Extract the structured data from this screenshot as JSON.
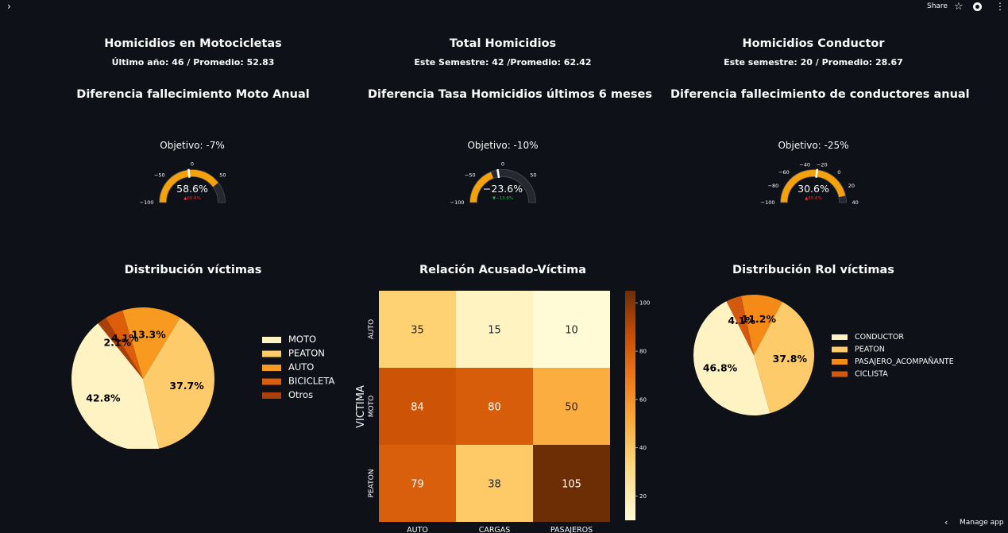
{
  "topbar": {
    "share_label": "Share"
  },
  "icons": {
    "menu": "chevron-right-icon",
    "star": "star-icon",
    "github": "github-icon",
    "more": "kebab-icon",
    "manage": "chevron-left-icon"
  },
  "metrics": [
    {
      "title": "Homicidios en Motocicletas",
      "subtitle": "Último año: 46 / Promedio: 52.83"
    },
    {
      "title": "Total Homicidios",
      "subtitle": "Este Semestre: 42 /Promedio: 62.42"
    },
    {
      "title": "Homicidios Conductor",
      "subtitle": "Este semestre: 20 / Promedio: 28.67"
    }
  ],
  "gauge_titles": [
    "Diferencia fallecimiento Moto Anual",
    "Diferencia Tasa Homicidios últimos 6 meses",
    "Diferencia fallecimiento de conductores anual"
  ],
  "manage_app": {
    "label": "Manage app"
  },
  "chart_data": [
    {
      "type": "gauge",
      "title": "Objetivo: -7%",
      "range": [
        100,
        -100
      ],
      "ticks": [
        "0",
        "50",
        "−50",
        "−100"
      ],
      "value": 58.6,
      "value_label": "58.6%",
      "delta_label": "▲65.6%",
      "delta_direction": "up",
      "threshold": -7,
      "bar_color": "#f5a10a",
      "delta_color": "#ff2b2b"
    },
    {
      "type": "gauge",
      "title": "Objetivo: -10%",
      "range": [
        100,
        -100
      ],
      "ticks": [
        "0",
        "50",
        "−50",
        "−100"
      ],
      "value": -23.6,
      "value_label": "−23.6%",
      "delta_label": "▼−13.6%",
      "delta_direction": "down",
      "threshold": -10,
      "bar_color": "#f5a10a",
      "delta_color": "#2fb04a"
    },
    {
      "type": "gauge",
      "title": "Objetivo: -25%",
      "range": [
        40,
        -100
      ],
      "ticks": [
        "−20",
        "0",
        "20",
        "40",
        "−40",
        "−60",
        "−80",
        "−100"
      ],
      "value": 30.6,
      "value_label": "30.6%",
      "delta_label": "▲55.6%",
      "delta_direction": "up",
      "threshold": -25,
      "bar_color": "#f5a10a",
      "delta_color": "#ff2b2b"
    },
    {
      "type": "pie",
      "title": "Distribución víctimas",
      "slices": [
        {
          "label": "MOTO",
          "value": 42.8,
          "text": "42.8%",
          "color": "#fff3c4"
        },
        {
          "label": "PEATON",
          "value": 37.7,
          "text": "37.7%",
          "color": "#fecb6b"
        },
        {
          "label": "AUTO",
          "value": 13.3,
          "text": "13.3%",
          "color": "#f99a20"
        },
        {
          "label": "BICICLETA",
          "value": 4.1,
          "text": "4.1%",
          "color": "#dc5d0a"
        },
        {
          "label": "Otros",
          "value": 2.1,
          "text": "2.1%",
          "color": "#a9400a"
        }
      ]
    },
    {
      "type": "heatmap",
      "title": "Relación Acusado-Víctima",
      "ylabel": "VICTIMA",
      "rows": [
        "AUTO",
        "MOTO",
        "PEATON"
      ],
      "cols": [
        "AUTO",
        "CARGAS",
        "PASAJEROS"
      ],
      "values": [
        [
          35,
          15,
          10
        ],
        [
          84,
          80,
          50
        ],
        [
          79,
          38,
          105
        ]
      ],
      "colorbar_ticks": [
        20,
        40,
        60,
        80,
        100
      ],
      "vmin": 10,
      "vmax": 105
    },
    {
      "type": "pie",
      "title": "Distribución Rol víctimas",
      "slices": [
        {
          "label": "CONDUCTOR",
          "value": 46.8,
          "text": "46.8%",
          "color": "#fff3c4"
        },
        {
          "label": "PEATON",
          "value": 37.8,
          "text": "37.8%",
          "color": "#fecb6b"
        },
        {
          "label": "PASAJERO_ACOMPAÑANTE",
          "value": 11.2,
          "text": "11.2%",
          "color": "#f58a16"
        },
        {
          "label": "CICLISTA",
          "value": 4.1,
          "text": "4.1%",
          "color": "#d2590d"
        }
      ]
    }
  ]
}
